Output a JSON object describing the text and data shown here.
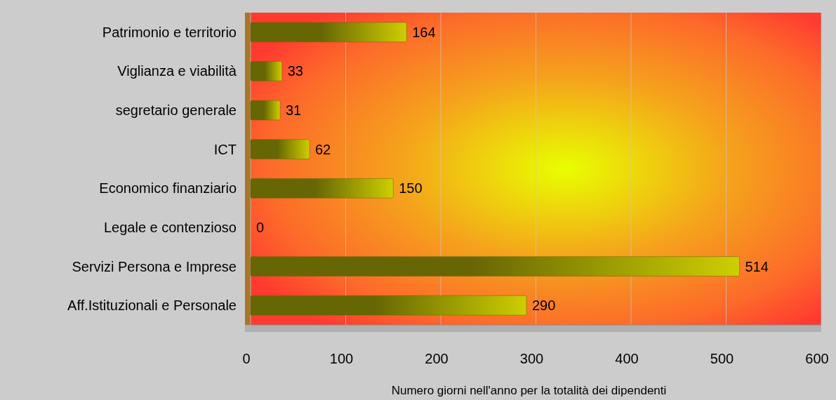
{
  "chart_data": {
    "type": "bar",
    "orientation": "horizontal",
    "categories": [
      "Patrimonio e territorio",
      "Viglianza e viabilità",
      "segretario generale",
      "ICT",
      "Economico finanziario",
      "Legale e contenzioso",
      "Servizi Persona e Imprese",
      "Aff.Istituzionali e Personale"
    ],
    "values": [
      164,
      33,
      31,
      62,
      150,
      0,
      514,
      290
    ],
    "color": "#666605",
    "xlabel": "Numero giorni nell'anno per la totalità dei dipendenti",
    "xlim": [
      0,
      600
    ],
    "xticks": [
      0,
      100,
      200,
      300,
      400,
      500,
      600
    ],
    "grid": "x",
    "data_labels": true
  }
}
